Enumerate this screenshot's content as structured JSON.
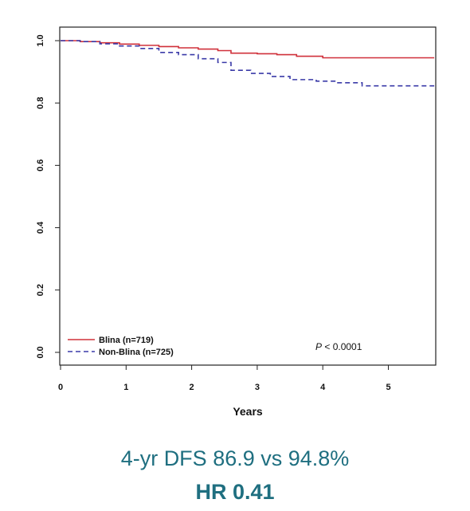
{
  "chart_data": {
    "type": "line",
    "title": "",
    "xlabel": "Years",
    "ylabel": "",
    "xlim": [
      0,
      5.7
    ],
    "ylim": [
      0,
      1.0
    ],
    "x_ticks": [
      "0",
      "1",
      "2",
      "3",
      "4",
      "5"
    ],
    "y_ticks": [
      "0.0",
      "0.2",
      "0.4",
      "0.6",
      "0.8",
      "1.0"
    ],
    "grid": false,
    "legend_position": "bottom-left",
    "series": [
      {
        "name": "Blina (n=719)",
        "color": "#d0303a",
        "style": "solid",
        "x": [
          0,
          0.3,
          0.6,
          0.9,
          1.2,
          1.5,
          1.8,
          2.1,
          2.4,
          2.6,
          3.0,
          3.3,
          3.6,
          4.0,
          4.5,
          5.0,
          5.7
        ],
        "y": [
          1.0,
          0.997,
          0.993,
          0.989,
          0.985,
          0.981,
          0.977,
          0.973,
          0.968,
          0.96,
          0.958,
          0.955,
          0.95,
          0.945,
          0.945,
          0.945,
          0.945
        ]
      },
      {
        "name": "Non-Blina (n=725)",
        "color": "#3a3aa8",
        "style": "dashed",
        "x": [
          0,
          0.3,
          0.6,
          0.9,
          1.2,
          1.5,
          1.8,
          2.1,
          2.4,
          2.6,
          2.9,
          3.2,
          3.5,
          3.9,
          4.2,
          4.6,
          5.0,
          5.7
        ],
        "y": [
          1.0,
          0.997,
          0.99,
          0.983,
          0.975,
          0.962,
          0.955,
          0.942,
          0.93,
          0.905,
          0.895,
          0.885,
          0.875,
          0.87,
          0.865,
          0.855,
          0.855,
          0.855
        ]
      }
    ],
    "annotation": {
      "prefix": "P",
      "text": " < 0.0001"
    }
  },
  "caption": {
    "line1": "4-yr DFS 86.9 vs 94.8%",
    "line2": "HR 0.41"
  }
}
